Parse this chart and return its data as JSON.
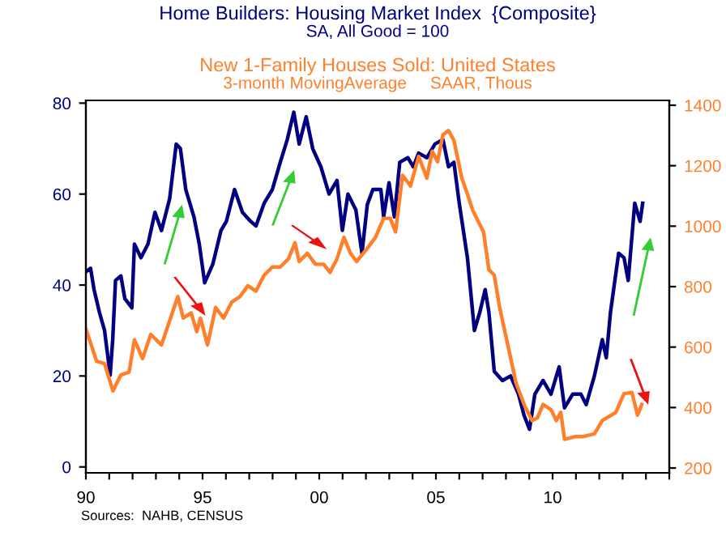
{
  "chart_data": {
    "type": "line",
    "ylabel": "SA, All Good = 100",
    "annotations": [
      "3-month MovingAverage     SAAR, Thous",
      "Sources:  NAHB, CENSUS"
    ],
    "xlim": [
      1990,
      2015
    ],
    "xticks": [
      {
        "value": 1990,
        "label": "90"
      },
      {
        "value": 1991,
        "label": null
      },
      {
        "value": 1992,
        "label": null
      },
      {
        "value": 1993,
        "label": null
      },
      {
        "value": 1994,
        "label": null
      },
      {
        "value": 1995,
        "label": "95"
      },
      {
        "value": 1996,
        "label": null
      },
      {
        "value": 1997,
        "label": null
      },
      {
        "value": 1998,
        "label": null
      },
      {
        "value": 1999,
        "label": null
      },
      {
        "value": 2000,
        "label": "00"
      },
      {
        "value": 2001,
        "label": null
      },
      {
        "value": 2002,
        "label": null
      },
      {
        "value": 2003,
        "label": null
      },
      {
        "value": 2004,
        "label": null
      },
      {
        "value": 2005,
        "label": "05"
      },
      {
        "value": 2006,
        "label": null
      },
      {
        "value": 2007,
        "label": null
      },
      {
        "value": 2008,
        "label": null
      },
      {
        "value": 2009,
        "label": null
      },
      {
        "value": 2010,
        "label": "10"
      },
      {
        "value": 2011,
        "label": null
      },
      {
        "value": 2012,
        "label": null
      },
      {
        "value": 2013,
        "label": null
      },
      {
        "value": 2014,
        "label": null
      },
      {
        "value": 2015,
        "label": null
      }
    ],
    "ylim": [
      -1.3,
      80.6
    ],
    "yticks": [
      0,
      20,
      40,
      60,
      80
    ],
    "y2lim": [
      184,
      1416
    ],
    "y2ticks": [
      200,
      400,
      600,
      800,
      1000,
      1200,
      1400
    ],
    "grid": false,
    "legend": false,
    "series": [
      {
        "name": "Home Builders: Housing Market Index  {Composite}",
        "color": "#000080",
        "x": [
          1990.0,
          1990.2,
          1990.35,
          1990.58,
          1990.8,
          1991.04,
          1991.15,
          1991.27,
          1991.5,
          1991.67,
          1991.97,
          1992.08,
          1992.36,
          1992.66,
          1992.96,
          1993.24,
          1993.59,
          1993.87,
          1994.05,
          1994.28,
          1994.63,
          1994.86,
          1995.09,
          1995.44,
          1995.79,
          1996.02,
          1996.37,
          1996.71,
          1997.06,
          1997.29,
          1997.64,
          1997.99,
          1998.33,
          1998.63,
          1998.91,
          1999.14,
          1999.44,
          1999.72,
          2000.07,
          2000.42,
          2000.76,
          2000.99,
          2001.23,
          2001.57,
          2001.83,
          2002.06,
          2002.3,
          2002.64,
          2002.76,
          2002.99,
          2003.22,
          2003.45,
          2003.8,
          2004.03,
          2004.26,
          2004.61,
          2004.96,
          2005.3,
          2005.54,
          2005.77,
          2006.0,
          2006.35,
          2006.65,
          2006.88,
          2007.11,
          2007.27,
          2007.5,
          2007.85,
          2008.2,
          2008.54,
          2008.78,
          2009.01,
          2009.24,
          2009.59,
          2009.93,
          2010.28,
          2010.51,
          2010.86,
          2011.21,
          2011.44,
          2011.79,
          2012.13,
          2012.3,
          2012.48,
          2012.83,
          2013.06,
          2013.24,
          2013.52,
          2013.75,
          2013.86
        ],
        "values": [
          42.9,
          43.7,
          39,
          34,
          30,
          20.2,
          28,
          41,
          42,
          37,
          35,
          49,
          46,
          49,
          56,
          52,
          59,
          71,
          70,
          61,
          55,
          49,
          40.5,
          44.6,
          52,
          54,
          61,
          56,
          54,
          53,
          58,
          61,
          67,
          72,
          78,
          71,
          77,
          70,
          66,
          60,
          63,
          52,
          60,
          56.5,
          47,
          57.7,
          61,
          61,
          55,
          62.5,
          55,
          67,
          68,
          66,
          69,
          68,
          71,
          72,
          66,
          67,
          58,
          46,
          30,
          34,
          39,
          34,
          21,
          19,
          20,
          16,
          11.3,
          8.3,
          16,
          19,
          16,
          22,
          13,
          16,
          16,
          13.7,
          20,
          28,
          24,
          34,
          47,
          46,
          41,
          58,
          54,
          58
        ]
      },
      {
        "name": "New 1-Family Houses Sold: United States",
        "color": "#ff7f2a",
        "axis": "y2",
        "x": [
          1990.0,
          1990.46,
          1990.8,
          1991.16,
          1991.5,
          1991.85,
          1992.08,
          1992.43,
          1992.78,
          1993.24,
          1993.47,
          1993.94,
          1994.17,
          1994.51,
          1994.75,
          1994.91,
          1995.21,
          1995.56,
          1995.9,
          1996.25,
          1996.6,
          1996.94,
          1997.29,
          1997.64,
          1997.99,
          1998.33,
          1998.68,
          1998.96,
          1999.14,
          1999.49,
          1999.84,
          2000.19,
          2000.46,
          2000.76,
          2001.06,
          2001.34,
          2001.6,
          2002.06,
          2002.41,
          2002.76,
          2003.04,
          2003.27,
          2003.57,
          2003.91,
          2004.26,
          2004.61,
          2004.84,
          2005.07,
          2005.3,
          2005.54,
          2005.77,
          2006.11,
          2006.35,
          2006.58,
          2007.04,
          2007.27,
          2007.5,
          2007.73,
          2008.08,
          2008.43,
          2008.78,
          2009.12,
          2009.35,
          2009.59,
          2009.93,
          2010.16,
          2010.35,
          2010.51,
          2010.98,
          2011.32,
          2011.79,
          2012.13,
          2012.71,
          2013.06,
          2013.4,
          2013.64,
          2013.82
        ],
        "values": [
          660,
          553,
          545,
          455,
          508,
          517,
          624,
          562,
          642,
          607,
          660,
          767,
          696,
          713,
          651,
          696,
          607,
          731,
          696,
          749,
          767,
          803,
          785,
          838,
          865,
          865,
          892,
          945,
          883,
          910,
          874,
          874,
          847,
          892,
          963,
          910,
          883,
          927,
          963,
          1026,
          1026,
          981,
          1168,
          1133,
          1231,
          1159,
          1248,
          1213,
          1302,
          1316,
          1284,
          1159,
          1106,
          1052,
          981,
          856,
          838,
          731,
          607,
          482,
          410,
          357,
          366,
          410,
          393,
          357,
          384,
          295,
          304,
          304,
          313,
          357,
          384,
          446,
          450,
          375,
          410
        ]
      }
    ]
  }
}
